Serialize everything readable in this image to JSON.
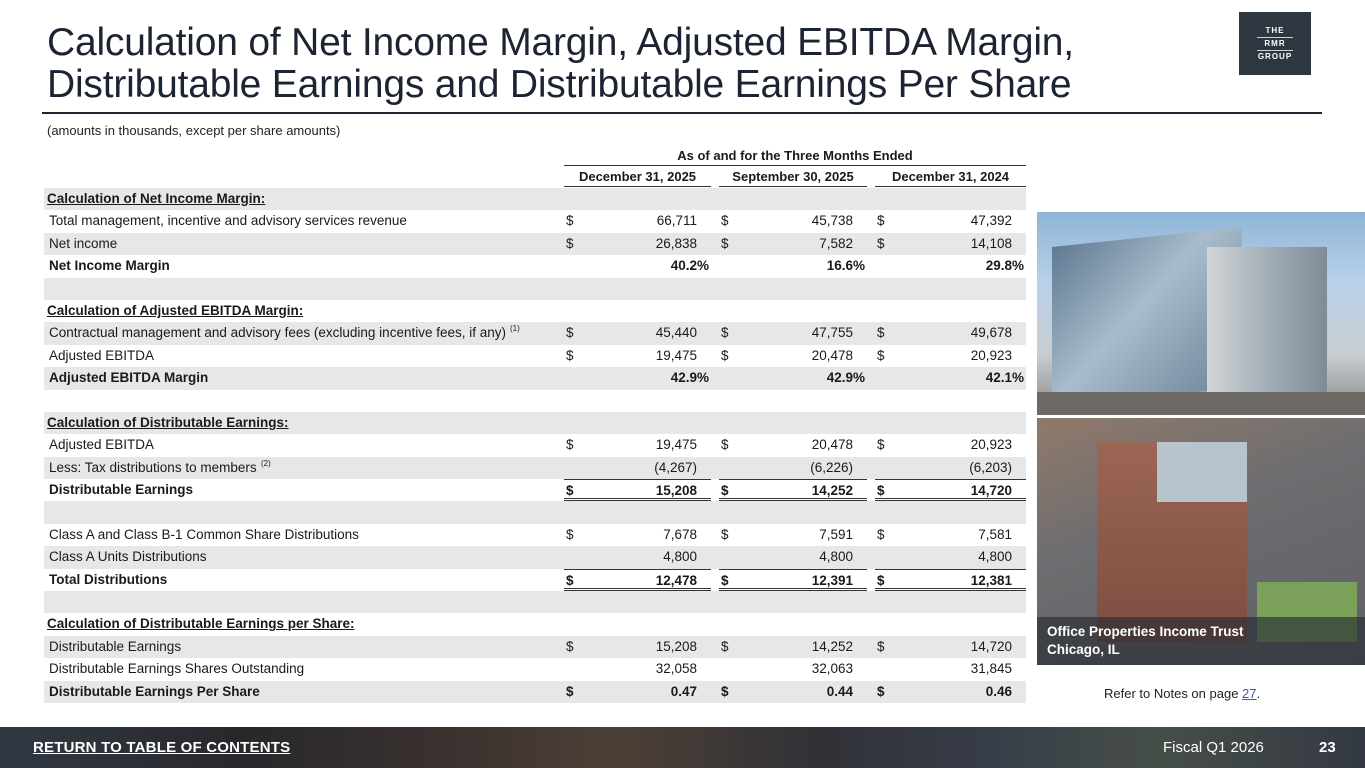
{
  "title": {
    "line1": "Calculation of Net Income Margin, Adjusted EBITDA Margin,",
    "line2": "Distributable Earnings and Distributable Earnings Per Share"
  },
  "logo": {
    "line1": "THE",
    "line2": "RMR",
    "line3": "GROUP"
  },
  "subtitle": "(amounts in thousands, except per share amounts)",
  "table": {
    "group_header": "As of and for the Three Months Ended",
    "columns": [
      "December 31, 2025",
      "September 30, 2025",
      "December 31, 2024"
    ],
    "rows": [
      {
        "type": "section",
        "label": "Calculation of Net Income Margin:"
      },
      {
        "type": "data",
        "label": "Total management, incentive and advisory services revenue",
        "cur": "$",
        "values": [
          "66,711",
          "45,738",
          "47,392"
        ]
      },
      {
        "type": "data",
        "label": "Net income",
        "cur": "$",
        "values": [
          "26,838",
          "7,582",
          "14,108"
        ]
      },
      {
        "type": "pct",
        "label": "Net Income Margin",
        "values": [
          "40.2%",
          "16.6%",
          "29.8%"
        ]
      },
      {
        "type": "blank"
      },
      {
        "type": "section",
        "label": "Calculation of Adjusted EBITDA Margin:"
      },
      {
        "type": "data",
        "label": "Contractual management and advisory fees (excluding incentive fees, if any)",
        "note": "(1)",
        "cur": "$",
        "values": [
          "45,440",
          "47,755",
          "49,678"
        ]
      },
      {
        "type": "data",
        "label": "Adjusted EBITDA",
        "cur": "$",
        "values": [
          "19,475",
          "20,478",
          "20,923"
        ]
      },
      {
        "type": "pct",
        "label": "Adjusted EBITDA Margin",
        "values": [
          "42.9%",
          "42.9%",
          "42.1%"
        ]
      },
      {
        "type": "blank"
      },
      {
        "type": "section",
        "label": "Calculation of Distributable Earnings:"
      },
      {
        "type": "data",
        "label": "Adjusted EBITDA",
        "cur": "$",
        "values": [
          "19,475",
          "20,478",
          "20,923"
        ]
      },
      {
        "type": "data",
        "label": "Less: Tax distributions to members",
        "note": "(2)",
        "cur": "",
        "values": [
          "(4,267)",
          "(6,226)",
          "(6,203)"
        ]
      },
      {
        "type": "total",
        "label": "Distributable Earnings",
        "cur": "$",
        "values": [
          "15,208",
          "14,252",
          "14,720"
        ]
      },
      {
        "type": "blank"
      },
      {
        "type": "data",
        "label": "Class A and Class B-1 Common Share Distributions",
        "cur": "$",
        "values": [
          "7,678",
          "7,591",
          "7,581"
        ]
      },
      {
        "type": "data",
        "label": "Class A Units Distributions",
        "cur": "",
        "values": [
          "4,800",
          "4,800",
          "4,800"
        ]
      },
      {
        "type": "total",
        "label": "Total Distributions",
        "cur": "$",
        "values": [
          "12,478",
          "12,391",
          "12,381"
        ]
      },
      {
        "type": "blank"
      },
      {
        "type": "section",
        "label": "Calculation of Distributable Earnings per Share:"
      },
      {
        "type": "data",
        "label": "Distributable Earnings",
        "cur": "$",
        "values": [
          "15,208",
          "14,252",
          "14,720"
        ]
      },
      {
        "type": "data",
        "label": "Distributable Earnings Shares Outstanding",
        "cur": "",
        "values": [
          "32,058",
          "32,063",
          "31,845"
        ]
      },
      {
        "type": "boldrow",
        "label": "Distributable Earnings Per Share",
        "cur": "$",
        "values": [
          "0.47",
          "0.44",
          "0.46"
        ]
      }
    ]
  },
  "photo": {
    "caption_line1": "Office Properties Income Trust",
    "caption_line2": "Chicago, IL"
  },
  "refer": {
    "prefix": "Refer to Notes on page ",
    "page": "27",
    "suffix": "."
  },
  "footer": {
    "return_link": "RETURN TO TABLE OF CONTENTS",
    "fiscal": "Fiscal Q1 2026",
    "page_number": "23"
  }
}
